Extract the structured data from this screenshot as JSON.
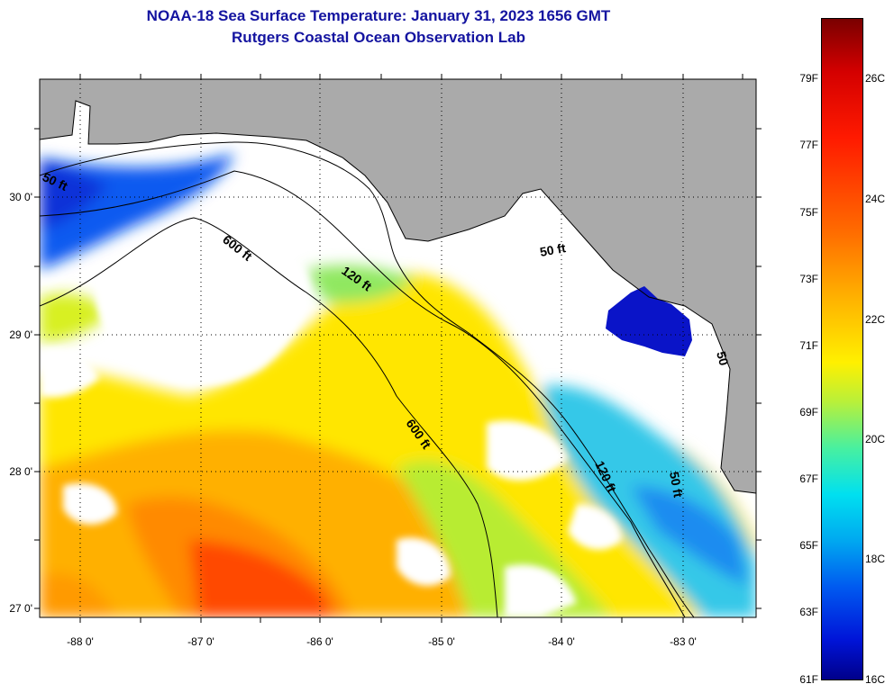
{
  "title": {
    "line1": "NOAA-18 Sea Surface Temperature:  January 31, 2023 1656 GMT",
    "line2": "Rutgers Coastal Ocean Observation Lab"
  },
  "map": {
    "latitude_ticks": [
      "30 0'",
      "29 0'",
      "28 0'",
      "27 0'"
    ],
    "longitude_ticks": [
      "-88 0'",
      "-87 0'",
      "-86 0'",
      "-85 0'",
      "-84 0'",
      "-83 0'"
    ],
    "lat_range": [
      26.97,
      30.84
    ],
    "lon_range": [
      -88.33,
      -82.57
    ],
    "contour_labels": [
      "50 ft",
      "600 ft",
      "120 ft",
      "50 ft",
      "600 ft",
      "120 ft",
      "50 ft",
      "50"
    ]
  },
  "colorbar": {
    "fahrenheit_labels": [
      "79F",
      "77F",
      "75F",
      "73F",
      "71F",
      "69F",
      "67F",
      "65F",
      "63F",
      "61F"
    ],
    "celsius_labels": [
      "26C",
      "24C",
      "22C",
      "20C",
      "18C",
      "16C"
    ],
    "range_f": [
      61,
      81
    ],
    "range_c": [
      16,
      27
    ]
  },
  "colors": {
    "land": "#aaaaaa",
    "cloud": "#ffffff",
    "title": "#1414a0"
  }
}
